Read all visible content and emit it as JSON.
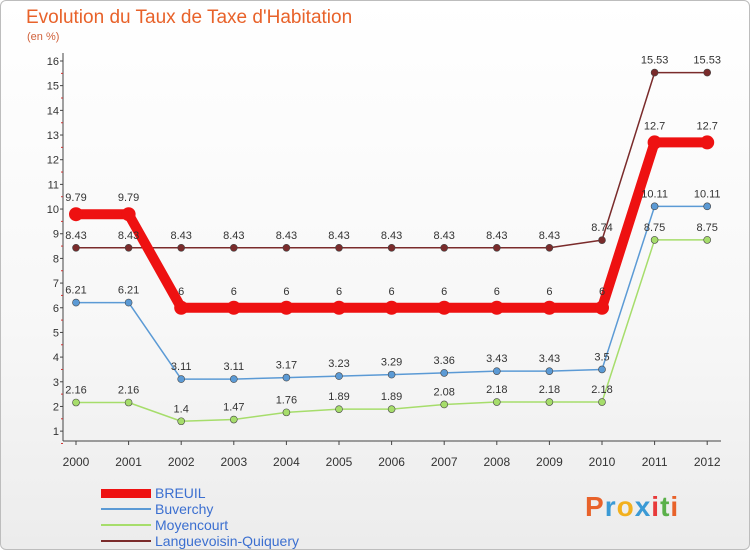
{
  "header": {
    "title": "Evolution du Taux de Taxe d'Habitation",
    "subtitle": "(en %)"
  },
  "chart_data": {
    "type": "line",
    "title": "Evolution du Taux de Taxe d'Habitation",
    "ylabel": "(en %)",
    "xlabel": "",
    "x": [
      "2000",
      "2001",
      "2002",
      "2003",
      "2004",
      "2005",
      "2006",
      "2007",
      "2008",
      "2009",
      "2010",
      "2011",
      "2012"
    ],
    "ylim": [
      1,
      16
    ],
    "yticks": [
      1,
      2,
      3,
      4,
      5,
      6,
      7,
      8,
      9,
      10,
      11,
      12,
      13,
      14,
      15,
      16
    ],
    "grid": false,
    "legend_position": "bottom-left",
    "series": [
      {
        "name": "BREUIL",
        "color": "#ee1111",
        "values": [
          9.79,
          9.79,
          6,
          6,
          6,
          6,
          6,
          6,
          6,
          6,
          6,
          12.7,
          12.7
        ],
        "labels": [
          "9.79",
          "9.79",
          "6",
          "6",
          "6",
          "6",
          "6",
          "6",
          "6",
          "6",
          "6",
          "12.7",
          "12.7"
        ]
      },
      {
        "name": "Buverchy",
        "color": "#5b9ad5",
        "values": [
          6.21,
          6.21,
          3.11,
          3.11,
          3.17,
          3.23,
          3.29,
          3.36,
          3.43,
          3.43,
          3.5,
          10.11,
          10.11
        ],
        "labels": [
          "6.21",
          "6.21",
          "3.11",
          "3.11",
          "3.17",
          "3.23",
          "3.29",
          "3.36",
          "3.43",
          "3.43",
          "3.5",
          "10.11",
          "10.11"
        ]
      },
      {
        "name": "Moyencourt",
        "color": "#a6dd6b",
        "values": [
          2.16,
          2.16,
          1.4,
          1.47,
          1.76,
          1.89,
          1.89,
          2.08,
          2.18,
          2.18,
          2.18,
          8.75,
          8.75
        ],
        "labels": [
          "2.16",
          "2.16",
          "1.4",
          "1.47",
          "1.76",
          "1.89",
          "1.89",
          "2.08",
          "2.18",
          "2.18",
          "2.18",
          "8.75",
          "8.75"
        ]
      },
      {
        "name": "Languevoisin-Quiquery",
        "color": "#7a2b2b",
        "values": [
          8.43,
          8.43,
          8.43,
          8.43,
          8.43,
          8.43,
          8.43,
          8.43,
          8.43,
          8.43,
          8.74,
          15.53,
          15.53
        ],
        "labels": [
          "8.43",
          "8.43",
          "8.43",
          "8.43",
          "8.43",
          "8.43",
          "8.43",
          "8.43",
          "8.43",
          "8.43",
          "8.74",
          "15.53",
          "15.53"
        ]
      }
    ]
  },
  "legend": {
    "items": [
      {
        "label": "BREUIL",
        "color": "#ee1111"
      },
      {
        "label": "Buverchy",
        "color": "#5b9ad5"
      },
      {
        "label": "Moyencourt",
        "color": "#a6dd6b"
      },
      {
        "label": "Languevoisin-Quiquery",
        "color": "#7a2b2b"
      }
    ]
  },
  "logo": {
    "letters": [
      "P",
      "r",
      "o",
      "x",
      "i",
      "t",
      "i"
    ],
    "colors": [
      "#e8622a",
      "#3b9ad5",
      "#f2b01e",
      "#3b9ad5",
      "#e83a3a",
      "#5bb04a",
      "#e8622a"
    ]
  }
}
